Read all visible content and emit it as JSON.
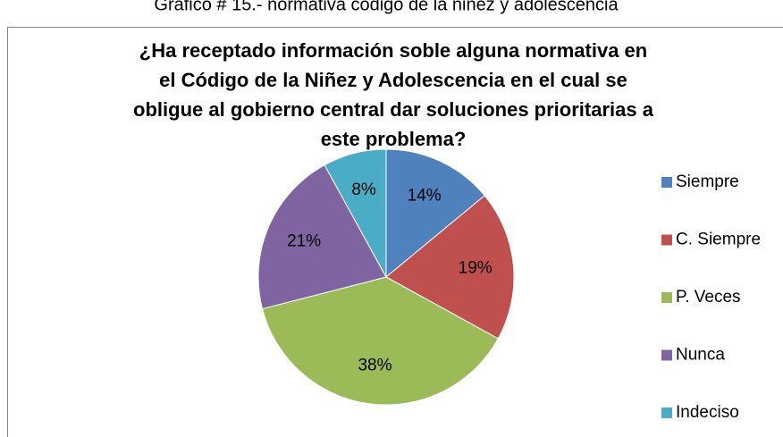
{
  "caption": "Gráfico # 15.- normativa código de la niñez y adolescencia",
  "chart_data": {
    "type": "pie",
    "title": [
      "¿Ha receptado información soble  alguna  normativa en",
      "el Código de la Niñez y Adolescencia en el cual se",
      "obligue al gobierno central dar soluciones prioritarias a",
      "este problema?"
    ],
    "categories": [
      "Siempre",
      "C. Siempre",
      "P. Veces",
      "Nunca",
      "Indeciso"
    ],
    "values": [
      14,
      19,
      38,
      21,
      8
    ],
    "value_labels": [
      "14%",
      "19%",
      "38%",
      "21%",
      "8%"
    ],
    "colors": [
      "#4f81bd",
      "#c0504d",
      "#9bbb59",
      "#8064a2",
      "#4bacc6"
    ],
    "legend": "right"
  }
}
